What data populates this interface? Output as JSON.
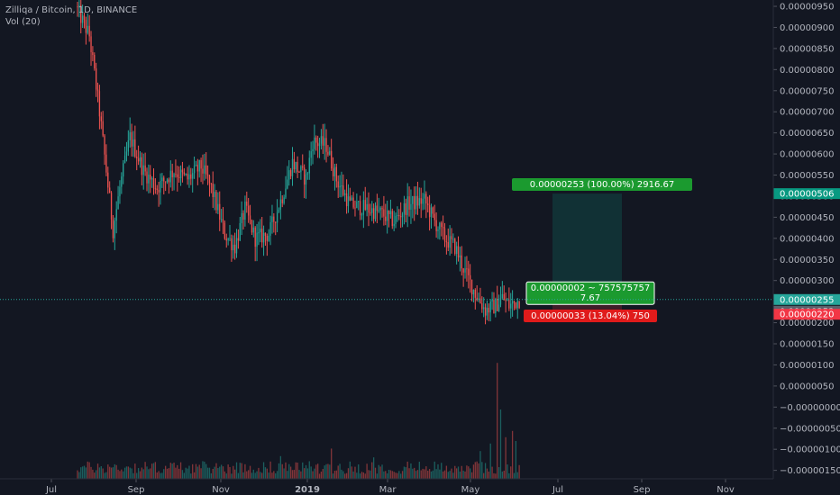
{
  "legend": {
    "symbol_line": "Zilliqa / Bitcoin, 1D, BINANCE",
    "volume_line": "Vol (20)"
  },
  "colors": {
    "background": "#131722",
    "up": "#26a69a",
    "down": "#ef5350",
    "axis_text": "#b2b5be",
    "current_price": "#26a69a",
    "target": "#089981",
    "stop": "#f23645"
  },
  "chart_data": {
    "type": "candlestick",
    "x_axis": {
      "tick_labels": [
        "Jul",
        "Sep",
        "Nov",
        "2019",
        "Mar",
        "May",
        "Jul",
        "Sep",
        "Nov"
      ]
    },
    "y_axis": {
      "position": "right",
      "range": [
        -1.7e-06,
        9.65e-06
      ],
      "tick_labels": [
        "0.00000950",
        "0.00000900",
        "0.00000850",
        "0.00000800",
        "0.00000750",
        "0.00000700",
        "0.00000650",
        "0.00000600",
        "0.00000550",
        "0.00000500",
        "0.00000450",
        "0.00000400",
        "0.00000350",
        "0.00000300",
        "0.00000250",
        "0.00000200",
        "0.00000150",
        "0.00000100",
        "0.00000050",
        "−0.00000000",
        "−0.00000050",
        "−0.00000100",
        "−0.00000150"
      ]
    },
    "price_path": [
      [
        0,
        9.5e-06
      ],
      [
        8,
        8.8e-06
      ],
      [
        14,
        7e-06
      ],
      [
        18,
        5.6e-06
      ],
      [
        22,
        4.2e-06
      ],
      [
        26,
        5.2e-06
      ],
      [
        32,
        6.4e-06
      ],
      [
        40,
        5.6e-06
      ],
      [
        48,
        5.2e-06
      ],
      [
        58,
        5.6e-06
      ],
      [
        66,
        5.4e-06
      ],
      [
        74,
        5.7e-06
      ],
      [
        80,
        5.2e-06
      ],
      [
        88,
        4.1e-06
      ],
      [
        94,
        3.8e-06
      ],
      [
        100,
        4.7e-06
      ],
      [
        106,
        4e-06
      ],
      [
        114,
        4.1e-06
      ],
      [
        122,
        5e-06
      ],
      [
        128,
        5.8e-06
      ],
      [
        136,
        5.4e-06
      ],
      [
        140,
        6.3e-06
      ],
      [
        148,
        6.2e-06
      ],
      [
        154,
        5.4e-06
      ],
      [
        162,
        4.8e-06
      ],
      [
        172,
        4.7e-06
      ],
      [
        180,
        4.6e-06
      ],
      [
        188,
        4.4e-06
      ],
      [
        196,
        4.8e-06
      ],
      [
        206,
        4.9e-06
      ],
      [
        212,
        4.4e-06
      ],
      [
        218,
        4e-06
      ],
      [
        224,
        3.8e-06
      ],
      [
        230,
        3.2e-06
      ],
      [
        236,
        2.7e-06
      ],
      [
        242,
        2.3e-06
      ],
      [
        248,
        2.4e-06
      ],
      [
        252,
        2.6e-06
      ],
      [
        256,
        2.4e-06
      ],
      [
        260,
        2.5e-06
      ],
      [
        262,
        2.55e-06
      ]
    ],
    "bar_count": 262,
    "volume_spikes": [
      [
        120,
        0.18
      ],
      [
        150,
        0.24
      ],
      [
        175,
        0.17
      ],
      [
        238,
        0.22
      ],
      [
        244,
        0.28
      ],
      [
        248,
        0.92
      ],
      [
        250,
        0.55
      ],
      [
        253,
        0.33
      ],
      [
        257,
        0.38
      ],
      [
        259,
        0.3
      ]
    ],
    "current_price": {
      "value": 2.55e-06,
      "label": "0.00000255"
    },
    "price_labels": [
      {
        "value": 2.53e-06,
        "label": "0.00000253"
      }
    ],
    "position": {
      "entry": 2.53e-06,
      "target": 5.06e-06,
      "stop": 2.2e-06,
      "target_axis_label": "0.00000506",
      "stop_axis_label": "0.00000220",
      "target_box_text": "0.00000253 (100.00%) 2916.67",
      "entry_box_line1": "0.00000002 ~ 757575757",
      "entry_box_line2": "7.67",
      "stop_box_text": "0.00000033 (13.04%) 750"
    }
  }
}
